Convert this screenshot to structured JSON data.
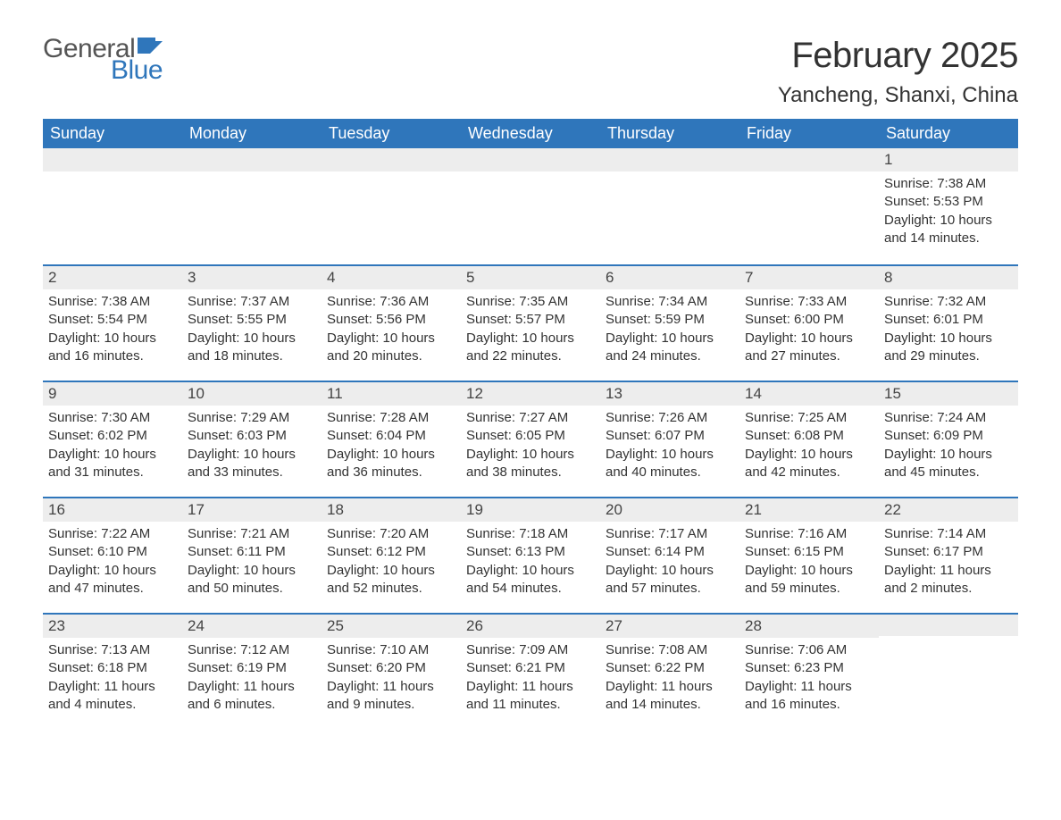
{
  "brand": {
    "text1": "General",
    "text2": "Blue",
    "flag_color": "#2f76bb"
  },
  "title": "February 2025",
  "location": "Yancheng, Shanxi, China",
  "colors": {
    "header_bg": "#2f76bb",
    "header_text": "#ffffff",
    "daybar_bg": "#ededed",
    "daybar_border": "#2f76bb",
    "body_text": "#333333",
    "page_bg": "#ffffff"
  },
  "typography": {
    "title_fontsize": 40,
    "location_fontsize": 24,
    "header_fontsize": 18,
    "daynum_fontsize": 17,
    "body_fontsize": 15
  },
  "day_headers": [
    "Sunday",
    "Monday",
    "Tuesday",
    "Wednesday",
    "Thursday",
    "Friday",
    "Saturday"
  ],
  "weeks": [
    [
      null,
      null,
      null,
      null,
      null,
      null,
      {
        "n": "1",
        "sr": "Sunrise: 7:38 AM",
        "ss": "Sunset: 5:53 PM",
        "dl": "Daylight: 10 hours and 14 minutes."
      }
    ],
    [
      {
        "n": "2",
        "sr": "Sunrise: 7:38 AM",
        "ss": "Sunset: 5:54 PM",
        "dl": "Daylight: 10 hours and 16 minutes."
      },
      {
        "n": "3",
        "sr": "Sunrise: 7:37 AM",
        "ss": "Sunset: 5:55 PM",
        "dl": "Daylight: 10 hours and 18 minutes."
      },
      {
        "n": "4",
        "sr": "Sunrise: 7:36 AM",
        "ss": "Sunset: 5:56 PM",
        "dl": "Daylight: 10 hours and 20 minutes."
      },
      {
        "n": "5",
        "sr": "Sunrise: 7:35 AM",
        "ss": "Sunset: 5:57 PM",
        "dl": "Daylight: 10 hours and 22 minutes."
      },
      {
        "n": "6",
        "sr": "Sunrise: 7:34 AM",
        "ss": "Sunset: 5:59 PM",
        "dl": "Daylight: 10 hours and 24 minutes."
      },
      {
        "n": "7",
        "sr": "Sunrise: 7:33 AM",
        "ss": "Sunset: 6:00 PM",
        "dl": "Daylight: 10 hours and 27 minutes."
      },
      {
        "n": "8",
        "sr": "Sunrise: 7:32 AM",
        "ss": "Sunset: 6:01 PM",
        "dl": "Daylight: 10 hours and 29 minutes."
      }
    ],
    [
      {
        "n": "9",
        "sr": "Sunrise: 7:30 AM",
        "ss": "Sunset: 6:02 PM",
        "dl": "Daylight: 10 hours and 31 minutes."
      },
      {
        "n": "10",
        "sr": "Sunrise: 7:29 AM",
        "ss": "Sunset: 6:03 PM",
        "dl": "Daylight: 10 hours and 33 minutes."
      },
      {
        "n": "11",
        "sr": "Sunrise: 7:28 AM",
        "ss": "Sunset: 6:04 PM",
        "dl": "Daylight: 10 hours and 36 minutes."
      },
      {
        "n": "12",
        "sr": "Sunrise: 7:27 AM",
        "ss": "Sunset: 6:05 PM",
        "dl": "Daylight: 10 hours and 38 minutes."
      },
      {
        "n": "13",
        "sr": "Sunrise: 7:26 AM",
        "ss": "Sunset: 6:07 PM",
        "dl": "Daylight: 10 hours and 40 minutes."
      },
      {
        "n": "14",
        "sr": "Sunrise: 7:25 AM",
        "ss": "Sunset: 6:08 PM",
        "dl": "Daylight: 10 hours and 42 minutes."
      },
      {
        "n": "15",
        "sr": "Sunrise: 7:24 AM",
        "ss": "Sunset: 6:09 PM",
        "dl": "Daylight: 10 hours and 45 minutes."
      }
    ],
    [
      {
        "n": "16",
        "sr": "Sunrise: 7:22 AM",
        "ss": "Sunset: 6:10 PM",
        "dl": "Daylight: 10 hours and 47 minutes."
      },
      {
        "n": "17",
        "sr": "Sunrise: 7:21 AM",
        "ss": "Sunset: 6:11 PM",
        "dl": "Daylight: 10 hours and 50 minutes."
      },
      {
        "n": "18",
        "sr": "Sunrise: 7:20 AM",
        "ss": "Sunset: 6:12 PM",
        "dl": "Daylight: 10 hours and 52 minutes."
      },
      {
        "n": "19",
        "sr": "Sunrise: 7:18 AM",
        "ss": "Sunset: 6:13 PM",
        "dl": "Daylight: 10 hours and 54 minutes."
      },
      {
        "n": "20",
        "sr": "Sunrise: 7:17 AM",
        "ss": "Sunset: 6:14 PM",
        "dl": "Daylight: 10 hours and 57 minutes."
      },
      {
        "n": "21",
        "sr": "Sunrise: 7:16 AM",
        "ss": "Sunset: 6:15 PM",
        "dl": "Daylight: 10 hours and 59 minutes."
      },
      {
        "n": "22",
        "sr": "Sunrise: 7:14 AM",
        "ss": "Sunset: 6:17 PM",
        "dl": "Daylight: 11 hours and 2 minutes."
      }
    ],
    [
      {
        "n": "23",
        "sr": "Sunrise: 7:13 AM",
        "ss": "Sunset: 6:18 PM",
        "dl": "Daylight: 11 hours and 4 minutes."
      },
      {
        "n": "24",
        "sr": "Sunrise: 7:12 AM",
        "ss": "Sunset: 6:19 PM",
        "dl": "Daylight: 11 hours and 6 minutes."
      },
      {
        "n": "25",
        "sr": "Sunrise: 7:10 AM",
        "ss": "Sunset: 6:20 PM",
        "dl": "Daylight: 11 hours and 9 minutes."
      },
      {
        "n": "26",
        "sr": "Sunrise: 7:09 AM",
        "ss": "Sunset: 6:21 PM",
        "dl": "Daylight: 11 hours and 11 minutes."
      },
      {
        "n": "27",
        "sr": "Sunrise: 7:08 AM",
        "ss": "Sunset: 6:22 PM",
        "dl": "Daylight: 11 hours and 14 minutes."
      },
      {
        "n": "28",
        "sr": "Sunrise: 7:06 AM",
        "ss": "Sunset: 6:23 PM",
        "dl": "Daylight: 11 hours and 16 minutes."
      },
      null
    ]
  ]
}
